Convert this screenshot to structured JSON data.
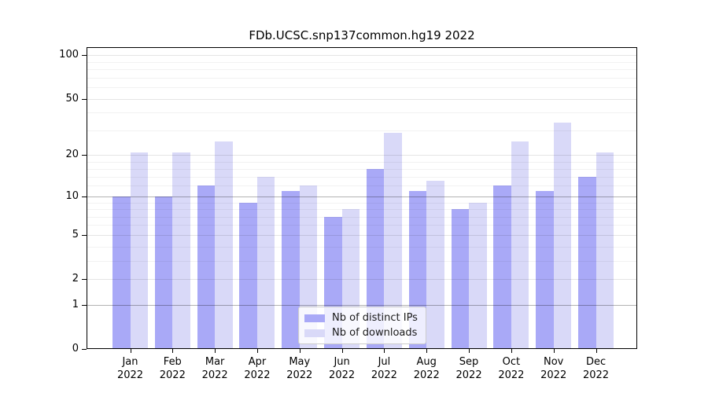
{
  "title": "FDb.UCSC.snp137common.hg19 2022",
  "colors": {
    "bar_dark": "#a9a9f7",
    "bar_light": "#d9d9f8",
    "grid_strong": "rgba(0,0,0,0.30)",
    "grid_mid": "rgba(0,0,0,0.10)",
    "grid_minor": "rgba(0,0,0,0.05)",
    "axis": "#000000"
  },
  "legend": {
    "items": [
      {
        "label": "Nb of distinct IPs",
        "color_key": "bar_dark"
      },
      {
        "label": "Nb of downloads",
        "color_key": "bar_light"
      }
    ]
  },
  "y_axis": {
    "tick_labels": [
      100,
      50,
      20,
      10,
      5,
      2,
      1,
      0
    ]
  },
  "x_axis": {
    "months": [
      "Jan",
      "Feb",
      "Mar",
      "Apr",
      "May",
      "Jun",
      "Jul",
      "Aug",
      "Sep",
      "Oct",
      "Nov",
      "Dec"
    ],
    "year": "2022"
  },
  "chart_data": {
    "type": "bar",
    "title": "FDb.UCSC.snp137common.hg19 2022",
    "categories": [
      "Jan 2022",
      "Feb 2022",
      "Mar 2022",
      "Apr 2022",
      "May 2022",
      "Jun 2022",
      "Jul 2022",
      "Aug 2022",
      "Sep 2022",
      "Oct 2022",
      "Nov 2022",
      "Dec 2022"
    ],
    "series": [
      {
        "name": "Nb of distinct IPs",
        "values": [
          10,
          10,
          12,
          9,
          11,
          7,
          16,
          11,
          8,
          12,
          11,
          14
        ]
      },
      {
        "name": "Nb of downloads",
        "values": [
          21,
          21,
          25,
          14,
          12,
          8,
          29,
          13,
          9,
          25,
          34,
          21
        ]
      }
    ],
    "xlabel": "",
    "ylabel": "",
    "yscale": "log1p",
    "ylim": [
      0,
      113
    ],
    "y_ticks": [
      0,
      1,
      2,
      5,
      10,
      20,
      50,
      100
    ],
    "y_minor_ticks": [
      3,
      4,
      6,
      7,
      8,
      9,
      12,
      14,
      16,
      18,
      30,
      40,
      60,
      70,
      80,
      90
    ],
    "grid": true,
    "legend_position": "lower center"
  }
}
